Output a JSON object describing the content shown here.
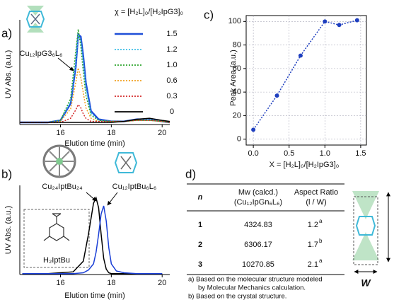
{
  "panel_labels": [
    "a)",
    "b)",
    "c)",
    "d)"
  ],
  "chart_data": [
    {
      "type": "line",
      "xlabel": "Elution time (min)",
      "ylabel": "UV Abs. (a.u.)",
      "legend_title": "χ = [H₂L]₀/[H₂IpG3]₀",
      "annotations": [
        "Cu₁₂IpG3₆L₆"
      ],
      "xlim": [
        14.4,
        20.3
      ],
      "xticks": [
        16,
        18,
        20
      ],
      "ylim": [
        0,
        1
      ],
      "x": [
        14.4,
        15,
        15.5,
        16,
        16.4,
        16.6,
        16.7,
        16.8,
        16.9,
        17,
        17.2,
        17.5,
        18,
        18.5,
        19,
        19.5,
        20,
        20.3
      ],
      "series": [
        {
          "name": "1.5",
          "color": "#1f4fd8",
          "style": "solid",
          "values": [
            0.02,
            0.02,
            0.02,
            0.04,
            0.2,
            0.55,
            0.86,
            0.84,
            0.65,
            0.4,
            0.13,
            0.05,
            0.03,
            0.03,
            0.05,
            0.05,
            0.03,
            0.02
          ]
        },
        {
          "name": "1.2",
          "color": "#3fbfe8",
          "style": "dotted",
          "values": [
            0.02,
            0.02,
            0.02,
            0.04,
            0.22,
            0.6,
            0.86,
            0.8,
            0.6,
            0.35,
            0.11,
            0.04,
            0.03,
            0.03,
            0.05,
            0.05,
            0.03,
            0.02
          ]
        },
        {
          "name": "1.0",
          "color": "#2ea52e",
          "style": "dotted",
          "values": [
            0.02,
            0.02,
            0.02,
            0.04,
            0.25,
            0.7,
            0.91,
            0.75,
            0.5,
            0.28,
            0.09,
            0.04,
            0.03,
            0.03,
            0.04,
            0.04,
            0.03,
            0.02
          ]
        },
        {
          "name": "0.6",
          "color": "#f0a020",
          "style": "dotted",
          "values": [
            0.02,
            0.02,
            0.02,
            0.03,
            0.15,
            0.4,
            0.54,
            0.45,
            0.3,
            0.16,
            0.06,
            0.03,
            0.03,
            0.03,
            0.04,
            0.04,
            0.03,
            0.02
          ]
        },
        {
          "name": "0.3",
          "color": "#d42a2a",
          "style": "dotted",
          "values": [
            0.02,
            0.02,
            0.02,
            0.02,
            0.06,
            0.14,
            0.19,
            0.16,
            0.1,
            0.06,
            0.03,
            0.03,
            0.03,
            0.03,
            0.04,
            0.04,
            0.03,
            0.02
          ]
        },
        {
          "name": "0",
          "color": "#000000",
          "style": "solid",
          "values": [
            0.02,
            0.02,
            0.02,
            0.02,
            0.02,
            0.02,
            0.02,
            0.02,
            0.02,
            0.02,
            0.02,
            0.02,
            0.02,
            0.03,
            0.05,
            0.06,
            0.04,
            0.03
          ]
        }
      ]
    },
    {
      "type": "line",
      "xlabel": "Elution time (min)",
      "ylabel": "UV Abs. (a.u.)",
      "annotations": [
        "Cu₂₄IptBu₂₄",
        "Cu₁₂IptBu₆L₆",
        "H₂IptBu"
      ],
      "xlim": [
        14.4,
        20.3
      ],
      "xticks": [
        16,
        18,
        20
      ],
      "ylim": [
        0,
        1
      ],
      "x": [
        14.5,
        15.5,
        16.5,
        16.9,
        17.1,
        17.3,
        17.4,
        17.5,
        17.6,
        17.7,
        17.8,
        17.9,
        18,
        18.2,
        18.5,
        19,
        20
      ],
      "series": [
        {
          "color": "#000000",
          "style": "solid",
          "values": [
            0.01,
            0.01,
            0.03,
            0.15,
            0.45,
            0.8,
            0.86,
            0.75,
            0.45,
            0.18,
            0.06,
            0.02,
            0.01,
            0.01,
            0.01,
            0.01,
            0.01
          ]
        },
        {
          "color": "#1a3fd6",
          "style": "solid",
          "values": [
            0.01,
            0.01,
            0.01,
            0.02,
            0.05,
            0.12,
            0.25,
            0.45,
            0.68,
            0.77,
            0.6,
            0.3,
            0.12,
            0.04,
            0.02,
            0.01,
            0.01
          ]
        }
      ]
    },
    {
      "type": "line",
      "xlabel": "X = [H₂L]₀/[H₂IpG3]₀",
      "ylabel": "Peak Area (a.u.)",
      "grid": true,
      "markers": true,
      "xlim": [
        -0.1,
        1.58
      ],
      "xticks": [
        {
          "value": 0,
          "label": "0.0"
        },
        {
          "value": 0.5,
          "label": "0.5"
        },
        {
          "value": 1,
          "label": "1.0"
        },
        {
          "value": 1.5,
          "label": "1.5"
        }
      ],
      "ylim": [
        -5,
        105
      ],
      "yticks": [
        0,
        20,
        40,
        60,
        80,
        100
      ],
      "x": [
        0,
        0.33,
        0.66,
        1,
        1.2,
        1.45
      ],
      "series": [
        {
          "color": "#1f3fbf",
          "style": "dotted",
          "values": [
            8,
            37,
            71,
            100,
            97,
            101
          ]
        }
      ]
    }
  ],
  "table": {
    "header": [
      [
        "n"
      ],
      [
        "Mw (calcd.)",
        "(Cu₁₂IpGn₆L₆)"
      ],
      [
        "Aspect Ratio",
        "(l / W)"
      ]
    ],
    "rows": [
      [
        "1",
        "4324.83",
        "1.2",
        "a"
      ],
      [
        "2",
        "6306.17",
        "1.7",
        "b"
      ],
      [
        "3",
        "10270.85",
        "2.1",
        "a"
      ]
    ],
    "footnotes": [
      "a) Based on the molecular structure modeled",
      "by Molecular Mechanics calculation.",
      "b) Based on the crystal structure."
    ],
    "dimension_label": "W"
  }
}
